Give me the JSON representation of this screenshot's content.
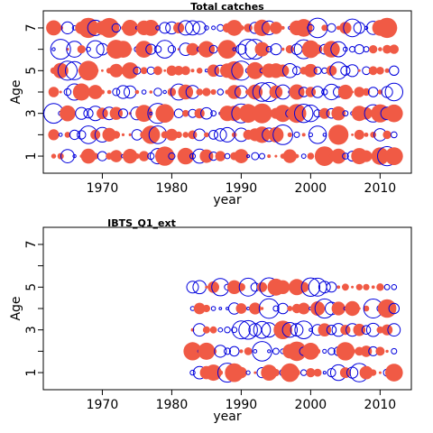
{
  "chart_data": [
    {
      "type": "scatter",
      "title": "Total catches",
      "xlabel": "year",
      "ylabel": "Age",
      "xlim": [
        1961.5,
        2014.5
      ],
      "ylim": [
        0.2,
        7.8
      ],
      "xticks": [
        1970,
        1980,
        1990,
        2000,
        2010
      ],
      "yticks_major": [
        1,
        3,
        5,
        7
      ],
      "yticks_minor": [
        2,
        4,
        6
      ],
      "ages": [
        1,
        2,
        3,
        4,
        5,
        6,
        7
      ],
      "years": [
        1963,
        2012
      ],
      "residual_colors": {
        "positive": "#f05a45",
        "negative": "#0000dd"
      },
      "seed": 11
    },
    {
      "type": "scatter",
      "title": "IBTS_Q1_ext",
      "xlabel": "year",
      "ylabel": "Age",
      "xlim": [
        1961.5,
        2014.5
      ],
      "ylim": [
        0.2,
        7.8
      ],
      "xticks": [
        1970,
        1980,
        1990,
        2000,
        2010
      ],
      "yticks_major": [
        1,
        3,
        5,
        7
      ],
      "yticks_minor": [
        2,
        4,
        6
      ],
      "ages": [
        1,
        2,
        3,
        4,
        5
      ],
      "years": [
        1983,
        2012
      ],
      "residual_colors": {
        "positive": "#f05a45",
        "negative": "#0000dd"
      },
      "seed": 29
    }
  ]
}
